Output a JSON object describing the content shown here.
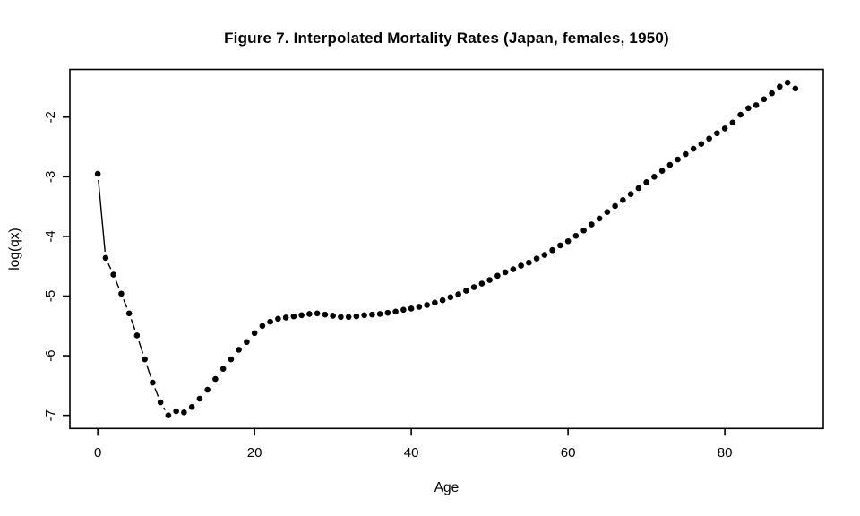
{
  "page": {
    "background_color": "#ffffff",
    "foreground_color": "#000000"
  },
  "chart_data": {
    "type": "scatter",
    "title": "Figure 7. Interpolated Mortality Rates (Japan, females, 1950)",
    "xlabel": "Age",
    "ylabel": "log(qx)",
    "x_ticks": [
      0,
      20,
      40,
      60,
      80
    ],
    "y_ticks": [
      -7,
      -6,
      -5,
      -4,
      -3,
      -2
    ],
    "xlim": [
      -3.56,
      92.56
    ],
    "ylim": [
      -7.22,
      -1.2
    ],
    "grid": false,
    "legend": false,
    "marker": "filled-circle",
    "line_style": "points-and-lines-with-gaps",
    "ages": [
      0,
      1,
      2,
      3,
      4,
      5,
      6,
      7,
      8,
      9,
      10,
      11,
      12,
      13,
      14,
      15,
      16,
      17,
      18,
      19,
      20,
      21,
      22,
      23,
      24,
      25,
      26,
      27,
      28,
      29,
      30,
      31,
      32,
      33,
      34,
      35,
      36,
      37,
      38,
      39,
      40,
      41,
      42,
      43,
      44,
      45,
      46,
      47,
      48,
      49,
      50,
      51,
      52,
      53,
      54,
      55,
      56,
      57,
      58,
      59,
      60,
      61,
      62,
      63,
      64,
      65,
      66,
      67,
      68,
      69,
      70,
      71,
      72,
      73,
      74,
      75,
      76,
      77,
      78,
      79,
      80,
      81,
      82,
      83,
      84,
      85,
      86,
      87,
      88,
      89
    ],
    "log_qx": [
      -2.95,
      -4.36,
      -4.64,
      -4.96,
      -5.29,
      -5.66,
      -6.06,
      -6.45,
      -6.78,
      -7.0,
      -6.93,
      -6.95,
      -6.86,
      -6.72,
      -6.57,
      -6.39,
      -6.22,
      -6.06,
      -5.9,
      -5.77,
      -5.62,
      -5.5,
      -5.43,
      -5.38,
      -5.36,
      -5.34,
      -5.32,
      -5.3,
      -5.29,
      -5.31,
      -5.33,
      -5.35,
      -5.35,
      -5.34,
      -5.32,
      -5.31,
      -5.3,
      -5.28,
      -5.26,
      -5.23,
      -5.21,
      -5.18,
      -5.15,
      -5.11,
      -5.07,
      -5.02,
      -4.97,
      -4.91,
      -4.85,
      -4.79,
      -4.73,
      -4.66,
      -4.6,
      -4.55,
      -4.49,
      -4.44,
      -4.37,
      -4.31,
      -4.23,
      -4.15,
      -4.08,
      -3.99,
      -3.9,
      -3.8,
      -3.7,
      -3.59,
      -3.49,
      -3.39,
      -3.29,
      -3.19,
      -3.09,
      -3.0,
      -2.9,
      -2.8,
      -2.71,
      -2.62,
      -2.53,
      -2.45,
      -2.36,
      -2.27,
      -2.19,
      -2.09,
      -1.96,
      -1.85,
      -1.8,
      -1.7,
      -1.6,
      -1.49,
      -1.42,
      -1.52
    ]
  }
}
